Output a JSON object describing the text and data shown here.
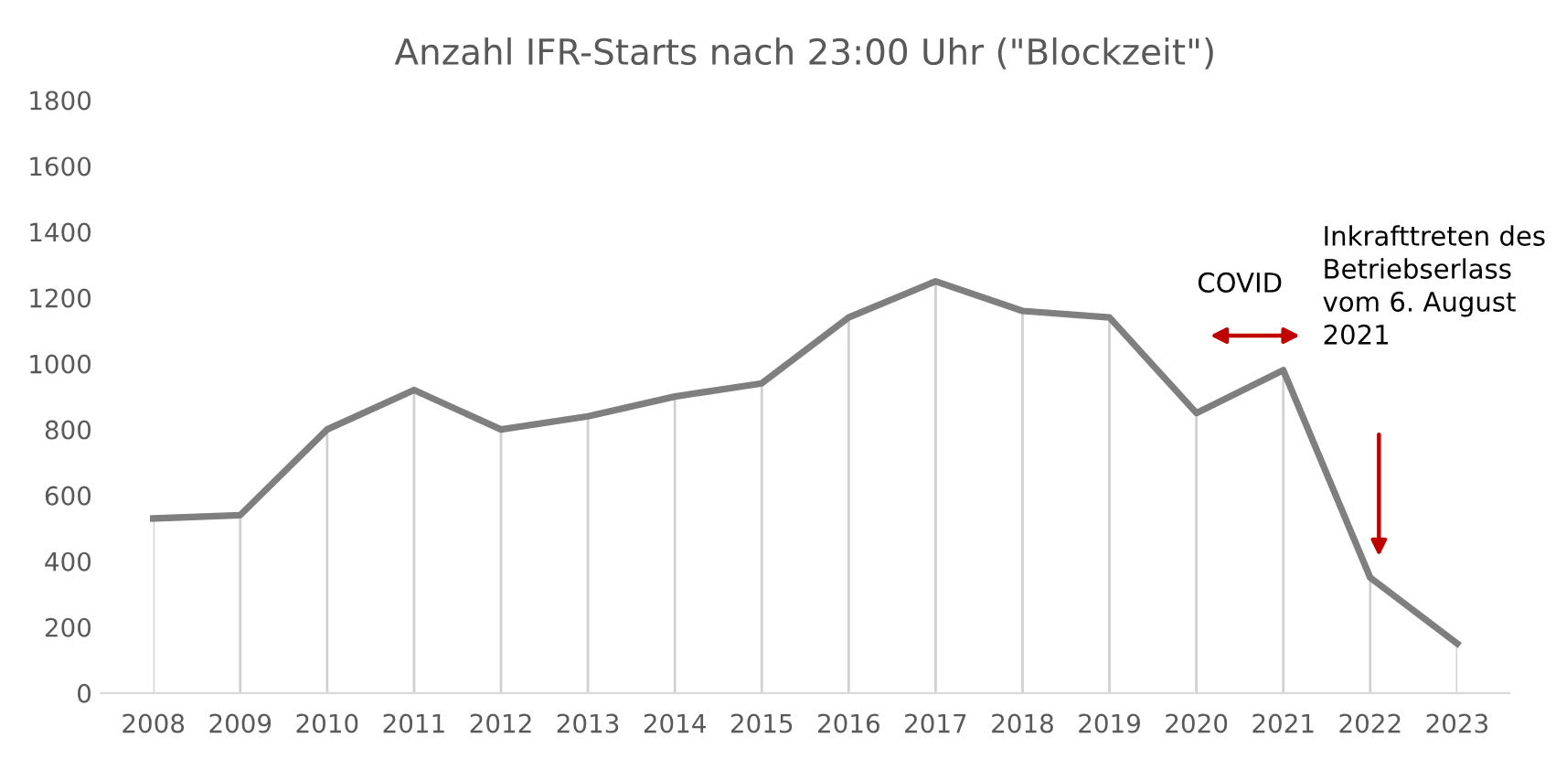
{
  "chart_data": {
    "type": "line",
    "title": "Anzahl IFR-Starts nach 23:00 Uhr (\"Blockzeit\")",
    "categories": [
      "2008",
      "2009",
      "2010",
      "2011",
      "2012",
      "2013",
      "2014",
      "2015",
      "2016",
      "2017",
      "2018",
      "2019",
      "2020",
      "2021",
      "2022",
      "2023"
    ],
    "series": [
      {
        "color": "#7f7f7f",
        "values": [
          530,
          540,
          800,
          920,
          800,
          840,
          900,
          940,
          1140,
          1250,
          1160,
          1140,
          850,
          980,
          350,
          150
        ]
      }
    ],
    "ylim": [
      0,
      1800
    ],
    "yticks": [
      0,
      200,
      400,
      600,
      800,
      1000,
      1200,
      1400,
      1600,
      1800
    ],
    "grid": "x",
    "legend": false,
    "marker": "none",
    "line_style": "solid",
    "annotations": [
      "COVID",
      "Inkrafttreten des\nBetriebserlass\nvom 6. August\n2021"
    ]
  }
}
